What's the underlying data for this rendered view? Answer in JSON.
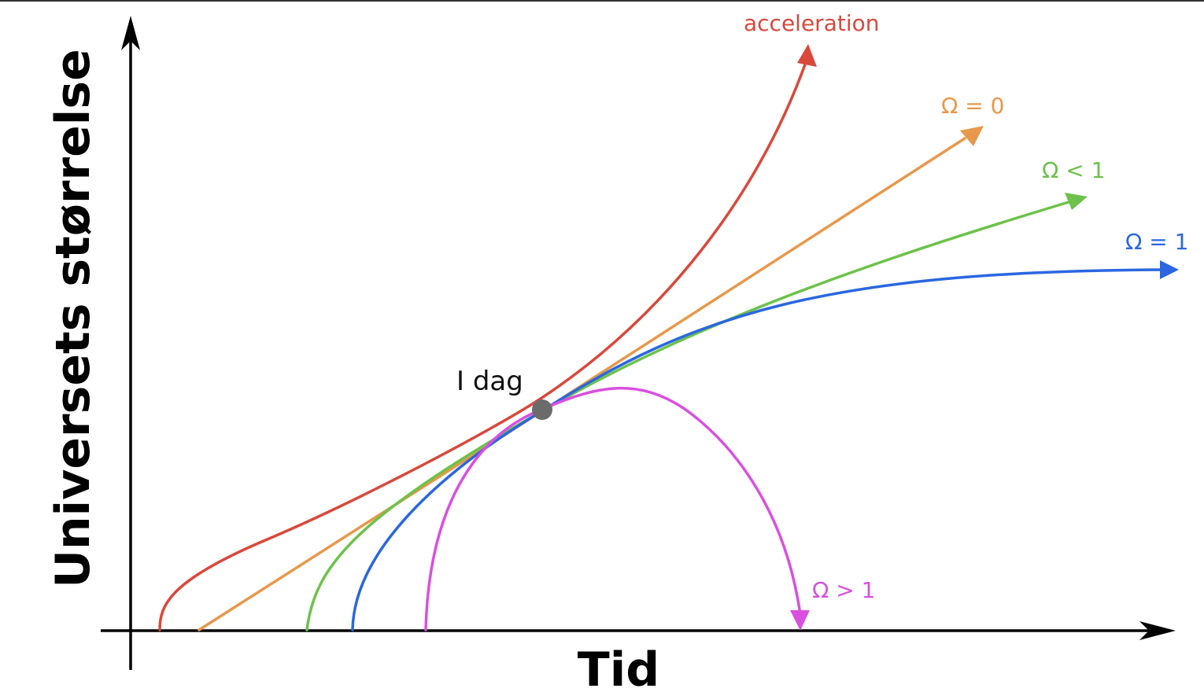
{
  "axes": {
    "x_label": "Tid",
    "y_label": "Universets størrelse"
  },
  "today_marker": {
    "label": "I dag",
    "color": "#6b6b6b"
  },
  "curves": [
    {
      "id": "acceleration",
      "label": "acceleration",
      "color": "#d9483b"
    },
    {
      "id": "omega-zero",
      "label": "Ω = 0",
      "color": "#e8984a"
    },
    {
      "id": "omega-less-one",
      "label": "Ω < 1",
      "color": "#6cc24a"
    },
    {
      "id": "omega-one",
      "label": "Ω = 1",
      "color": "#2a67e0"
    },
    {
      "id": "omega-greater-one",
      "label": "Ω > 1",
      "color": "#d94fe0"
    }
  ],
  "colors": {
    "axis": "#000000"
  }
}
